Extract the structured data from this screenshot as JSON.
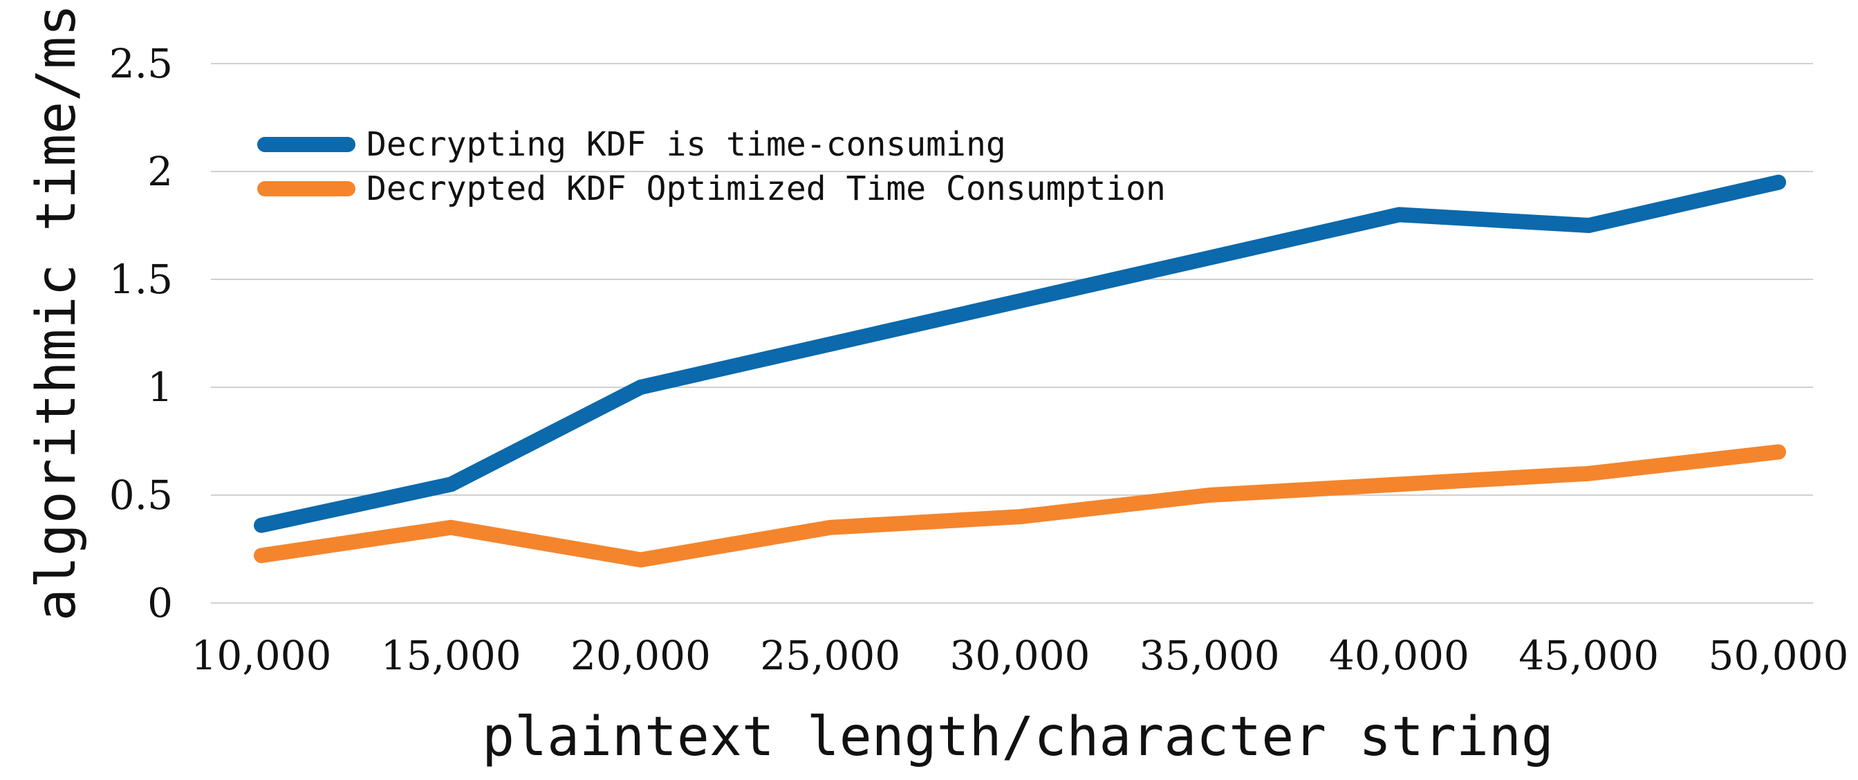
{
  "chart_data": {
    "type": "line",
    "title": "",
    "xlabel": "plaintext length/character string",
    "ylabel": "algorithmic time/ms",
    "x": [
      10000,
      15000,
      20000,
      25000,
      30000,
      35000,
      40000,
      45000,
      50000
    ],
    "x_tick_labels": [
      "10,000",
      "15,000",
      "20,000",
      "25,000",
      "30,000",
      "35,000",
      "40,000",
      "45,000",
      "50,000"
    ],
    "y_ticks": [
      0,
      0.5,
      1,
      1.5,
      2,
      2.5
    ],
    "y_tick_labels": [
      "0",
      "0.5",
      "1",
      "1.5",
      "2",
      "2.5"
    ],
    "ylim": [
      0,
      2.5
    ],
    "grid": "horizontal",
    "legend_position": "top-left",
    "series": [
      {
        "name": "Decrypting KDF is time-consuming",
        "color": "#0b69ac",
        "values": [
          0.36,
          0.55,
          1.0,
          1.2,
          1.4,
          1.6,
          1.8,
          1.75,
          1.95
        ]
      },
      {
        "name": "Decrypted KDF Optimized Time Consumption",
        "color": "#f4852d",
        "values": [
          0.22,
          0.35,
          0.2,
          0.35,
          0.4,
          0.5,
          0.55,
          0.6,
          0.7
        ]
      }
    ]
  }
}
